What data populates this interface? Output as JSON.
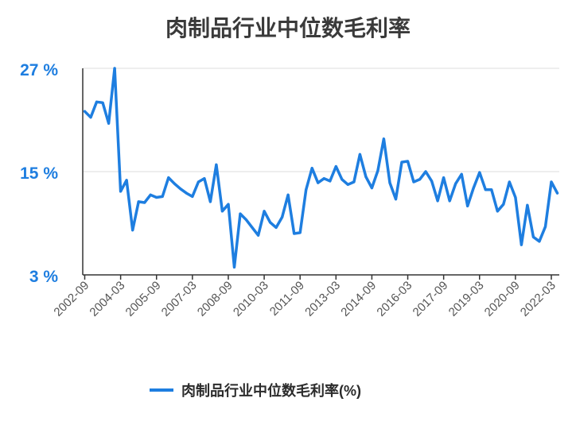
{
  "chart_data": {
    "type": "line",
    "title": "肉制品行业中位数毛利率",
    "y_ticks": [
      "27 %",
      "15 %",
      "3 %"
    ],
    "y_tick_values": [
      27,
      15,
      3
    ],
    "ylim": [
      3,
      27
    ],
    "x_ticks": [
      "2002-09",
      "2004-03",
      "2005-09",
      "2007-03",
      "2008-09",
      "2010-03",
      "2011-09",
      "2013-03",
      "2014-09",
      "2016-03",
      "2017-09",
      "2019-03",
      "2020-09",
      "2022-03"
    ],
    "grid": true,
    "legend_position": "bottom",
    "colors": {
      "line": "#1e7ee0",
      "axis_text": "#1e7ee0",
      "tick_label": "#555555",
      "grid": "#dddddd"
    },
    "series": [
      {
        "name": "肉制品行业中位数毛利率(%)",
        "values": [
          22.0,
          21.3,
          23.1,
          23.0,
          20.6,
          27.0,
          12.7,
          14.0,
          8.2,
          11.5,
          11.4,
          12.3,
          12.0,
          12.1,
          14.3,
          13.6,
          13.0,
          12.5,
          12.1,
          13.8,
          14.2,
          11.5,
          15.8,
          10.4,
          11.2,
          3.9,
          10.1,
          9.4,
          8.5,
          7.6,
          10.4,
          9.1,
          8.5,
          9.7,
          12.3,
          7.8,
          7.9,
          12.9,
          15.4,
          13.7,
          14.2,
          13.9,
          15.6,
          14.1,
          13.5,
          13.8,
          17.0,
          14.4,
          13.1,
          15.1,
          18.8,
          13.7,
          11.8,
          16.1,
          16.2,
          13.8,
          14.1,
          15.0,
          13.9,
          11.6,
          14.3,
          11.6,
          13.6,
          14.7,
          11.0,
          13.1,
          14.9,
          12.9,
          12.9,
          10.4,
          11.2,
          13.8,
          12.0,
          6.5,
          11.1,
          7.4,
          6.9,
          8.6,
          13.8,
          12.5
        ]
      }
    ]
  }
}
